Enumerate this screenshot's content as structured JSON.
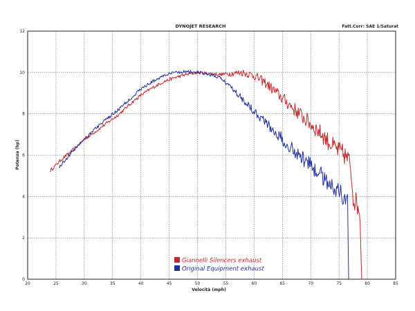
{
  "header": {
    "title": "DYNOJET RESEARCH",
    "correction": "Fatt.Corr: SAE  1/Saturat"
  },
  "colors": {
    "giannelli": "#c0282b",
    "original": "#1f2fa0",
    "grid": "#666666"
  },
  "chart_data": {
    "type": "line",
    "title": "",
    "xlabel": "Velocità (mph)",
    "ylabel": "Potenza (hp)",
    "xlim": [
      20,
      85
    ],
    "ylim": [
      0,
      12
    ],
    "xticks": [
      "20",
      "25",
      "30",
      "35",
      "40",
      "45",
      "50",
      "55",
      "60",
      "65",
      "70",
      "75",
      "80",
      "85"
    ],
    "yticks": [
      "0",
      "2",
      "4",
      "6",
      "8",
      "10",
      "12"
    ],
    "grid": true,
    "legend_position": "bottom-center",
    "series": [
      {
        "name": "Giannelli Silencers exhaust",
        "color": "#c0282b",
        "x": [
          24,
          26,
          28,
          30,
          32,
          34,
          36,
          38,
          40,
          42,
          44,
          46,
          48,
          50,
          52,
          54,
          56,
          58,
          60,
          62,
          64,
          66,
          68,
          70,
          72,
          74,
          76,
          77,
          77.5,
          78,
          78.5,
          78.8,
          79
        ],
        "y": [
          5.25,
          5.8,
          6.25,
          6.75,
          7.15,
          7.55,
          7.95,
          8.45,
          8.9,
          9.25,
          9.55,
          9.75,
          9.9,
          10.0,
          9.95,
          9.9,
          9.95,
          10.0,
          9.85,
          9.5,
          9.0,
          8.5,
          8.0,
          7.5,
          7.0,
          6.4,
          6.0,
          5.6,
          4.0,
          3.7,
          3.5,
          3.0,
          0
        ]
      },
      {
        "name": "Original Equipment exhaust",
        "color": "#1f2fa0",
        "x": [
          25.5,
          28,
          30,
          32,
          34,
          36,
          38,
          40,
          42,
          44,
          46,
          48,
          50,
          52,
          54,
          56,
          58,
          60,
          62,
          64,
          66,
          68,
          70,
          72,
          74,
          75,
          76,
          76.5,
          76.7
        ],
        "y": [
          5.4,
          6.2,
          6.8,
          7.3,
          7.75,
          8.2,
          8.7,
          9.2,
          9.55,
          9.85,
          10.0,
          10.05,
          10.0,
          9.9,
          9.75,
          9.3,
          8.7,
          8.15,
          7.6,
          7.05,
          6.5,
          6.0,
          5.5,
          5.0,
          4.5,
          4.2,
          4.0,
          3.8,
          0
        ]
      }
    ]
  }
}
